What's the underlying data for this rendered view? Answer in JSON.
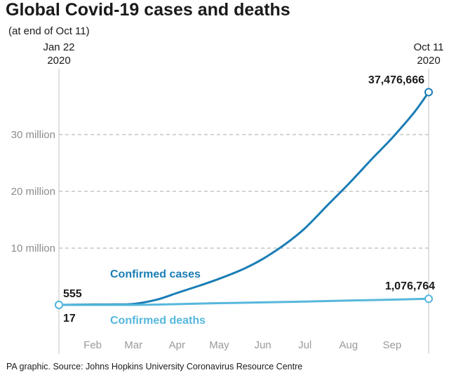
{
  "colors": {
    "cases": "#1a7db5",
    "deaths": "#55b7dc",
    "grid": "#aaaaaa",
    "axis": "#cccccc"
  },
  "chart_data": {
    "type": "line",
    "title": "Global Covid-19 cases and deaths",
    "subtitle": "(at end of Oct 11)",
    "source": "PA graphic. Source: Johns Hopkins University Coronavirus Resource Centre",
    "start_label": [
      "Jan 22",
      "2020"
    ],
    "end_label": [
      "Oct 11",
      "2020"
    ],
    "x_tick_labels": [
      "Feb",
      "Mar",
      "Apr",
      "May",
      "Jun",
      "Jul",
      "Aug",
      "Sep"
    ],
    "x_tick_dates": [
      "2020-02-15",
      "2020-03-15",
      "2020-04-15",
      "2020-05-15",
      "2020-06-15",
      "2020-07-15",
      "2020-08-15",
      "2020-09-15"
    ],
    "x_range": [
      "2020-01-22",
      "2020-10-11"
    ],
    "ylim": [
      0,
      40000000
    ],
    "y_ticks": [
      10000000,
      20000000,
      30000000
    ],
    "y_tick_labels": [
      "10 million",
      "20 million",
      "30 million"
    ],
    "grid": "horizontal dashed",
    "series": [
      {
        "name": "Confirmed cases",
        "key": "cases",
        "start_label": "555",
        "end_label": "37,476,666",
        "points": [
          [
            "2020-01-22",
            555
          ],
          [
            "2020-02-15",
            70000
          ],
          [
            "2020-03-01",
            90000
          ],
          [
            "2020-03-15",
            170000
          ],
          [
            "2020-04-01",
            950000
          ],
          [
            "2020-04-15",
            2100000
          ],
          [
            "2020-05-01",
            3400000
          ],
          [
            "2020-05-15",
            4600000
          ],
          [
            "2020-06-01",
            6300000
          ],
          [
            "2020-06-15",
            8100000
          ],
          [
            "2020-07-01",
            10700000
          ],
          [
            "2020-07-15",
            13500000
          ],
          [
            "2020-08-01",
            17800000
          ],
          [
            "2020-08-15",
            21300000
          ],
          [
            "2020-09-01",
            25800000
          ],
          [
            "2020-09-15",
            29400000
          ],
          [
            "2020-10-01",
            34000000
          ],
          [
            "2020-10-11",
            37476666
          ]
        ]
      },
      {
        "name": "Confirmed deaths",
        "key": "deaths",
        "start_label": "17",
        "end_label": "1,076,764",
        "points": [
          [
            "2020-01-22",
            17
          ],
          [
            "2020-03-15",
            6000
          ],
          [
            "2020-04-15",
            134000
          ],
          [
            "2020-05-15",
            305000
          ],
          [
            "2020-06-15",
            440000
          ],
          [
            "2020-07-15",
            590000
          ],
          [
            "2020-08-15",
            770000
          ],
          [
            "2020-09-15",
            930000
          ],
          [
            "2020-10-11",
            1076764
          ]
        ]
      }
    ]
  }
}
